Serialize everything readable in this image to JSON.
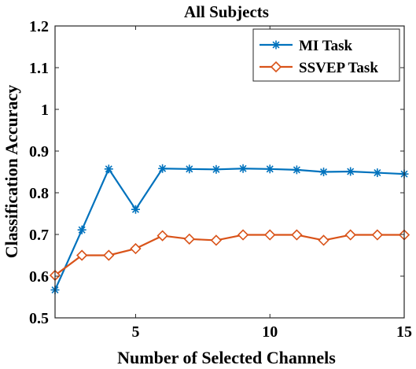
{
  "chart_data": {
    "type": "line",
    "title": "All Subjects",
    "xlabel": "Number of Selected Channels",
    "ylabel": "Classification Accuracy",
    "xlim": [
      2,
      15
    ],
    "ylim": [
      0.5,
      1.2
    ],
    "x_ticks": [
      5,
      10,
      15
    ],
    "x_tick_labels": [
      "5",
      "10",
      "15"
    ],
    "y_ticks": [
      0.5,
      0.6,
      0.7,
      0.8,
      0.9,
      1.0,
      1.1,
      1.2
    ],
    "y_tick_labels": [
      "0.5",
      "0.6",
      "0.7",
      "0.8",
      "0.9",
      "1",
      "1.1",
      "1.2"
    ],
    "grid": false,
    "legend_position": "top-right",
    "x": [
      2,
      3,
      4,
      5,
      6,
      7,
      8,
      9,
      10,
      11,
      12,
      13,
      14,
      15
    ],
    "series": [
      {
        "name": "MI Task",
        "color": "#0072BD",
        "marker": "asterisk",
        "values": [
          0.567,
          0.711,
          0.857,
          0.76,
          0.858,
          0.857,
          0.856,
          0.858,
          0.857,
          0.855,
          0.85,
          0.851,
          0.848,
          0.845
        ]
      },
      {
        "name": "SSVEP Task",
        "color": "#D95319",
        "marker": "diamond",
        "values": [
          0.602,
          0.65,
          0.65,
          0.666,
          0.697,
          0.689,
          0.686,
          0.699,
          0.699,
          0.699,
          0.686,
          0.699,
          0.699,
          0.699
        ]
      }
    ]
  }
}
